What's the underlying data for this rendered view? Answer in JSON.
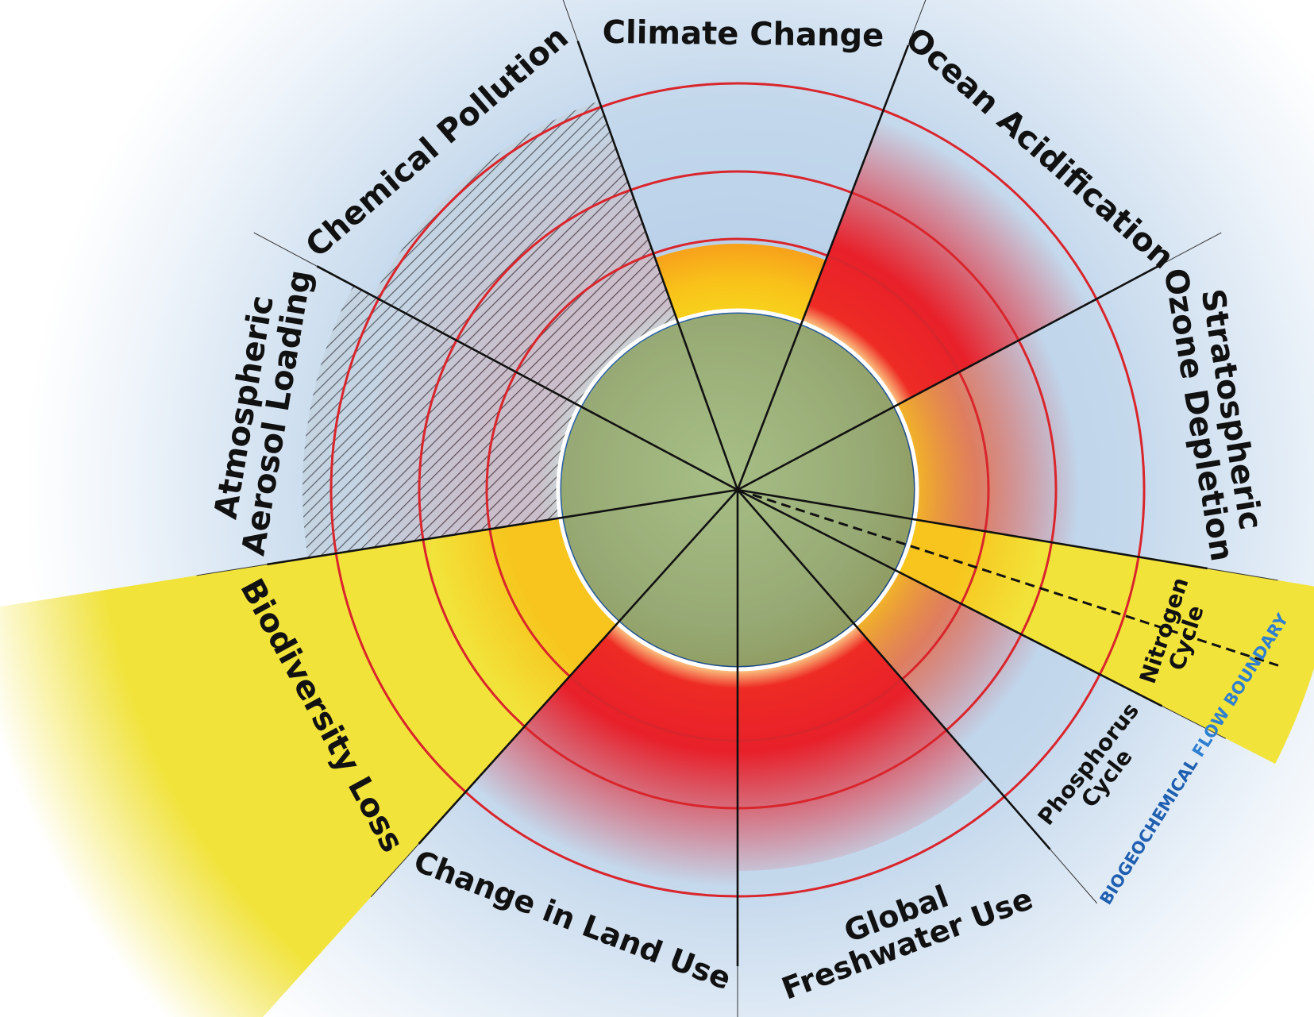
{
  "segments": [
    {
      "label": [
        "Climate Change"
      ]
    },
    {
      "label": [
        "Ocean Acidification"
      ]
    },
    {
      "label": [
        "Stratospheric",
        "Ozone Depletion"
      ]
    },
    {
      "label": [
        "Nitrogen",
        "Cycle"
      ]
    },
    {
      "label": [
        "Phosphorus",
        "Cycle"
      ]
    },
    {
      "label": [
        "Global",
        "Freshwater Use"
      ]
    },
    {
      "label": [
        "Change in Land Use"
      ]
    },
    {
      "label": [
        "Biodiversity Loss"
      ]
    },
    {
      "label": [
        "Atmospheric",
        "Aerosol Loading"
      ]
    },
    {
      "label": [
        "Chemical Pollution"
      ]
    }
  ],
  "boundary_label": {
    "part1": "BIOGEOCHEMICAL",
    "part2": "FLOW BOUNDARY"
  }
}
